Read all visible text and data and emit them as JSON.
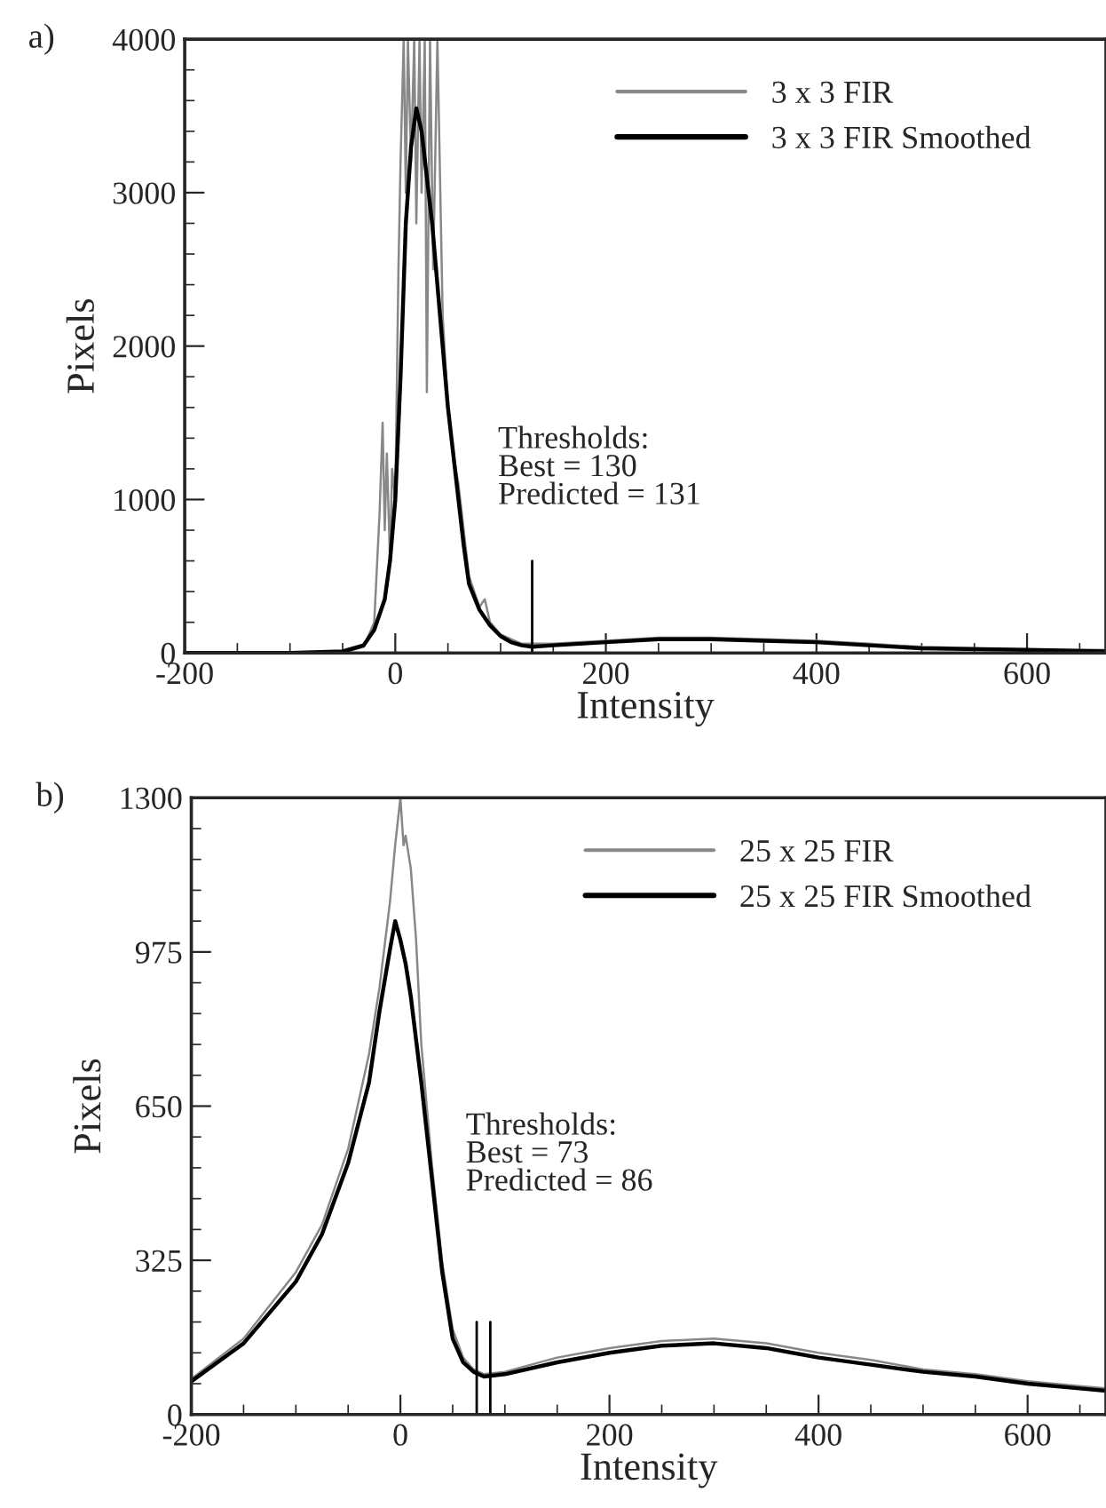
{
  "chart_data": [
    {
      "type": "line",
      "title": "a)",
      "xlabel": "Intensity",
      "ylabel": "Pixels",
      "xlim": [
        -200,
        675
      ],
      "xticks": [
        -200,
        0,
        200,
        400,
        600
      ],
      "ylim": [
        0,
        4000
      ],
      "yticks": [
        0,
        1000,
        2000,
        3000,
        4000
      ],
      "grid": false,
      "legend": "top right",
      "marker": "none",
      "series": [
        {
          "name": "3 x 3 FIR",
          "color": "#888888",
          "x": [
            -200,
            -50,
            -30,
            -20,
            -15,
            -12,
            -10,
            -8,
            -5,
            -3,
            0,
            3,
            5,
            8,
            10,
            12,
            15,
            18,
            20,
            23,
            25,
            28,
            30,
            33,
            36,
            40,
            45,
            50,
            55,
            60,
            65,
            70,
            75,
            80,
            85,
            90,
            100,
            120,
            150,
            200,
            250,
            300,
            350,
            400,
            450,
            500,
            600,
            675
          ],
          "values": [
            0,
            0,
            40,
            200,
            900,
            1500,
            800,
            1300,
            600,
            1200,
            1000,
            2500,
            3200,
            4000,
            3000,
            4000,
            3200,
            4000,
            2800,
            4000,
            3000,
            4000,
            1700,
            4000,
            2500,
            4000,
            2200,
            1600,
            1300,
            1100,
            800,
            500,
            400,
            300,
            350,
            200,
            120,
            60,
            60,
            80,
            100,
            100,
            90,
            80,
            60,
            40,
            20,
            20
          ]
        },
        {
          "name": "3 x 3 FIR Smoothed",
          "color": "#000000",
          "x": [
            -200,
            -100,
            -50,
            -30,
            -20,
            -10,
            -5,
            0,
            5,
            10,
            15,
            20,
            25,
            30,
            35,
            40,
            45,
            50,
            55,
            60,
            65,
            70,
            80,
            90,
            100,
            110,
            120,
            130,
            150,
            200,
            250,
            300,
            350,
            400,
            450,
            500,
            600,
            675
          ],
          "values": [
            0,
            0,
            10,
            50,
            150,
            350,
            600,
            1000,
            1800,
            2800,
            3300,
            3550,
            3400,
            3100,
            2800,
            2400,
            2000,
            1600,
            1300,
            1000,
            700,
            450,
            280,
            180,
            110,
            70,
            50,
            40,
            50,
            70,
            90,
            90,
            80,
            70,
            50,
            30,
            20,
            10
          ]
        }
      ],
      "ref_lines": [
        {
          "axis": "x",
          "value": 130,
          "color": "#000000"
        }
      ],
      "annotations": [
        "Thresholds:\nBest = 130\nPredicted = 131"
      ]
    },
    {
      "type": "line",
      "title": "b)",
      "xlabel": "Intensity",
      "ylabel": "Pixels",
      "xlim": [
        -200,
        675
      ],
      "xticks": [
        -200,
        0,
        200,
        400,
        600
      ],
      "ylim": [
        0,
        1300
      ],
      "yticks": [
        0,
        325,
        650,
        975,
        1300
      ],
      "grid": false,
      "legend": "top right",
      "marker": "none",
      "series": [
        {
          "name": "25 x 25 FIR",
          "color": "#888888",
          "x": [
            -200,
            -150,
            -100,
            -75,
            -50,
            -30,
            -20,
            -10,
            -5,
            0,
            3,
            5,
            10,
            15,
            20,
            30,
            40,
            50,
            60,
            70,
            80,
            100,
            150,
            200,
            250,
            300,
            350,
            400,
            450,
            500,
            550,
            600,
            650,
            675
          ],
          "values": [
            75,
            160,
            300,
            400,
            560,
            760,
            900,
            1080,
            1200,
            1300,
            1200,
            1220,
            1150,
            1000,
            780,
            530,
            320,
            180,
            120,
            95,
            85,
            90,
            120,
            140,
            155,
            160,
            150,
            130,
            115,
            95,
            85,
            70,
            60,
            55
          ]
        },
        {
          "name": "25 x 25 FIR Smoothed",
          "color": "#000000",
          "x": [
            -200,
            -150,
            -100,
            -75,
            -50,
            -30,
            -20,
            -10,
            -5,
            0,
            5,
            10,
            20,
            30,
            40,
            50,
            60,
            70,
            80,
            100,
            150,
            200,
            250,
            300,
            350,
            400,
            450,
            500,
            550,
            600,
            650,
            675
          ],
          "values": [
            70,
            150,
            280,
            380,
            530,
            700,
            850,
            980,
            1040,
            1000,
            950,
            880,
            700,
            500,
            300,
            160,
            110,
            90,
            80,
            85,
            110,
            130,
            145,
            150,
            140,
            120,
            105,
            90,
            80,
            65,
            55,
            50
          ]
        }
      ],
      "ref_lines": [
        {
          "axis": "x",
          "value": 73,
          "color": "#000000"
        },
        {
          "axis": "x",
          "value": 86,
          "color": "#000000"
        }
      ],
      "annotations": [
        "Thresholds:\nBest = 73\nPredicted = 86"
      ]
    }
  ]
}
